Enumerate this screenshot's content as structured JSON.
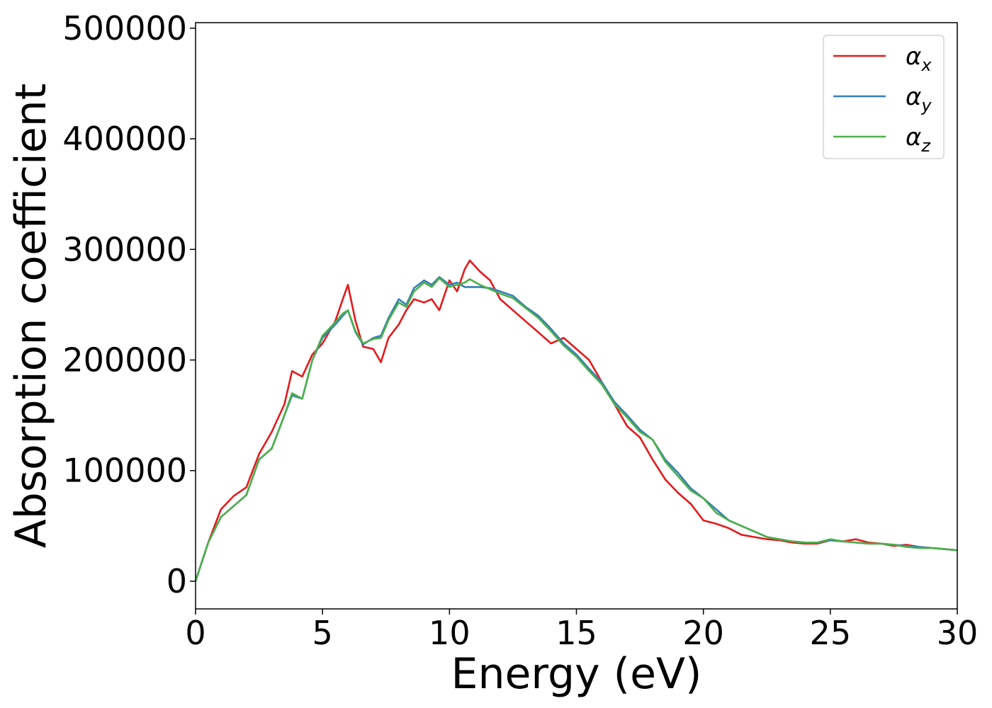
{
  "chart_data": {
    "type": "line",
    "title": "",
    "xlabel": "Energy (eV)",
    "ylabel": "Absorption coefficient",
    "xlim": [
      0,
      30
    ],
    "ylim": [
      -25000,
      505000
    ],
    "xticks": [
      0,
      5,
      10,
      15,
      20,
      25,
      30
    ],
    "yticks": [
      0,
      100000,
      200000,
      300000,
      400000,
      500000
    ],
    "grid": false,
    "legend_position": "top-right",
    "series": [
      {
        "name": "α_x",
        "legend_main": "α",
        "legend_sub": "x",
        "color": "#e41a1c",
        "x": [
          0,
          0.5,
          1.0,
          1.5,
          2.0,
          2.5,
          3.0,
          3.5,
          3.8,
          4.2,
          4.6,
          5.0,
          5.5,
          5.8,
          6.0,
          6.3,
          6.6,
          7.0,
          7.3,
          7.6,
          8.0,
          8.3,
          8.6,
          9.0,
          9.3,
          9.6,
          10.0,
          10.3,
          10.6,
          10.8,
          11.2,
          11.6,
          12.0,
          12.5,
          13.0,
          13.5,
          14.0,
          14.5,
          15.0,
          15.5,
          16.0,
          16.5,
          17.0,
          17.5,
          18.0,
          18.5,
          19.0,
          19.5,
          20.0,
          20.5,
          21.0,
          21.5,
          22.0,
          22.5,
          23.0,
          23.5,
          24.0,
          24.5,
          25.0,
          25.5,
          26.0,
          26.5,
          27.0,
          27.5,
          28.0,
          28.5,
          29.0,
          29.5,
          30.0
        ],
        "y": [
          0,
          35000,
          65000,
          77000,
          85000,
          115000,
          135000,
          160000,
          190000,
          185000,
          205000,
          215000,
          235000,
          255000,
          268000,
          235000,
          212000,
          210000,
          198000,
          220000,
          232000,
          245000,
          255000,
          252000,
          255000,
          245000,
          272000,
          262000,
          282000,
          290000,
          280000,
          272000,
          255000,
          245000,
          235000,
          225000,
          215000,
          220000,
          210000,
          200000,
          180000,
          160000,
          140000,
          130000,
          110000,
          92000,
          80000,
          70000,
          55000,
          52000,
          48000,
          42000,
          40000,
          38000,
          37000,
          35000,
          34000,
          34000,
          37000,
          36000,
          38000,
          35000,
          34000,
          32000,
          33000,
          31000,
          30000,
          29000,
          28000
        ]
      },
      {
        "name": "α_y",
        "legend_main": "α",
        "legend_sub": "y",
        "color": "#377eb8",
        "x": [
          0,
          0.5,
          1.0,
          1.5,
          2.0,
          2.5,
          3.0,
          3.5,
          3.8,
          4.2,
          4.6,
          5.0,
          5.5,
          5.8,
          6.0,
          6.3,
          6.6,
          7.0,
          7.3,
          7.6,
          8.0,
          8.3,
          8.6,
          9.0,
          9.3,
          9.6,
          10.0,
          10.3,
          10.6,
          10.8,
          11.2,
          11.6,
          12.0,
          12.5,
          13.0,
          13.5,
          14.0,
          14.5,
          15.0,
          15.5,
          16.0,
          16.5,
          17.0,
          17.5,
          18.0,
          18.5,
          19.0,
          19.5,
          20.0,
          20.5,
          21.0,
          21.5,
          22.0,
          22.5,
          23.0,
          23.5,
          24.0,
          24.5,
          25.0,
          25.5,
          26.0,
          26.5,
          27.0,
          27.5,
          28.0,
          28.5,
          29.0,
          29.5,
          30.0
        ],
        "y": [
          0,
          35000,
          58000,
          68000,
          78000,
          110000,
          120000,
          150000,
          168000,
          165000,
          200000,
          220000,
          232000,
          240000,
          245000,
          225000,
          214000,
          220000,
          222000,
          238000,
          255000,
          250000,
          265000,
          272000,
          268000,
          275000,
          268000,
          270000,
          266000,
          266000,
          266000,
          265000,
          262000,
          258000,
          248000,
          240000,
          228000,
          215000,
          205000,
          192000,
          180000,
          162000,
          150000,
          137000,
          128000,
          110000,
          98000,
          84000,
          75000,
          65000,
          55000,
          50000,
          45000,
          40000,
          38000,
          36000,
          35000,
          35000,
          37000,
          36000,
          35000,
          34000,
          34000,
          33000,
          32000,
          31000,
          30000,
          29000,
          28000
        ]
      },
      {
        "name": "α_z",
        "legend_main": "α",
        "legend_sub": "z",
        "color": "#4daf4a",
        "x": [
          0,
          0.5,
          1.0,
          1.5,
          2.0,
          2.5,
          3.0,
          3.5,
          3.8,
          4.2,
          4.6,
          5.0,
          5.5,
          5.8,
          6.0,
          6.3,
          6.6,
          7.0,
          7.3,
          7.6,
          8.0,
          8.3,
          8.6,
          9.0,
          9.3,
          9.6,
          10.0,
          10.3,
          10.6,
          10.8,
          11.2,
          11.6,
          12.0,
          12.5,
          13.0,
          13.5,
          14.0,
          14.5,
          15.0,
          15.5,
          16.0,
          16.5,
          17.0,
          17.5,
          18.0,
          18.5,
          19.0,
          19.5,
          20.0,
          20.5,
          21.0,
          21.5,
          22.0,
          22.5,
          23.0,
          23.5,
          24.0,
          24.5,
          25.0,
          25.5,
          26.0,
          26.5,
          27.0,
          27.5,
          28.0,
          28.5,
          29.0,
          29.5,
          30.0
        ],
        "y": [
          0,
          35000,
          58000,
          68000,
          78000,
          110000,
          120000,
          150000,
          170000,
          165000,
          200000,
          222000,
          234000,
          242000,
          245000,
          226000,
          215000,
          219000,
          220000,
          236000,
          252000,
          248000,
          262000,
          270000,
          266000,
          274000,
          266000,
          268000,
          270000,
          273000,
          268000,
          264000,
          260000,
          256000,
          247000,
          238000,
          226000,
          213000,
          203000,
          190000,
          178000,
          160000,
          148000,
          135000,
          128000,
          108000,
          95000,
          82000,
          75000,
          62000,
          55000,
          50000,
          45000,
          40000,
          38000,
          36000,
          35000,
          35000,
          38000,
          36000,
          35000,
          34000,
          34000,
          33000,
          31000,
          30000,
          30000,
          29000,
          28000
        ]
      }
    ]
  }
}
